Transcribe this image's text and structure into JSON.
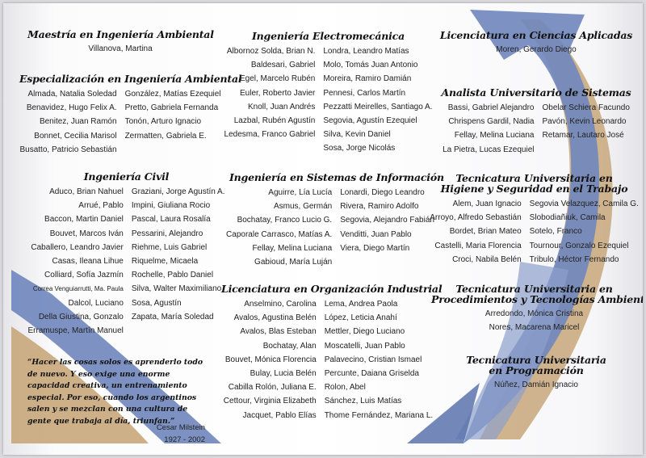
{
  "colors": {
    "blue": "#6f86bd",
    "blue_dark": "#4f669f",
    "tan": "#c8a77a",
    "background": "#f7f7f9"
  },
  "sections": {
    "maestria": {
      "title": [
        "Maestría en Ingeniería Ambiental"
      ],
      "single": [
        "Villanova, Martina"
      ]
    },
    "especializacion": {
      "title": [
        "Especialización en Ingeniería Ambiental"
      ],
      "left": [
        "Almada, Natalia Soledad",
        "Benavidez, Hugo Felix A.",
        "Benitez, Juan Ramón",
        "Bonnet, Cecilia Marisol",
        "Busatto, Patricio Sebastián"
      ],
      "right": [
        "González, Matías Ezequiel",
        "Pretto, Gabriela Fernanda",
        "Tonón, Arturo Ignacio",
        "Zermatten, Gabriela E."
      ]
    },
    "civil": {
      "title": [
        "Ingeniería Civil"
      ],
      "left": [
        "Aduco, Brian Nahuel",
        "Arrué, Pablo",
        "Baccon, Martin Daniel",
        "Bouvet, Marcos Iván",
        "Caballero, Leandro Javier",
        "Casas, Ileana Lihue",
        "Colliard, Sofía Jazmín",
        "Correa Venguiarrutti, Ma. Paula",
        "Dalcol, Luciano",
        "Della Giustina, Gonzalo",
        "Erramuspe, Martín Manuel"
      ],
      "right": [
        "Graziani, Jorge Agustín A.",
        "Impini, Giuliana Rocio",
        "Pascal, Laura Rosalía",
        "Pessarini, Alejandro",
        "Riehme, Luis Gabriel",
        "Riquelme, Micaela",
        "Rochelle, Pablo Daniel",
        "Silva, Walter Maximiliano",
        "Sosa, Agustín",
        "Zapata, María Soledad"
      ]
    },
    "electromecanica": {
      "title": [
        "Ingeniería Electromecánica"
      ],
      "left": [
        "Albornoz Solda, Brian N.",
        "Baldesari, Gabriel",
        "Egel, Marcelo Rubén",
        "Euler, Roberto Javier",
        "Knoll, Juan Andrés",
        "Lazbal, Rubén Agustín",
        "Ledesma, Franco Gabriel"
      ],
      "right": [
        "Londra, Leandro Matías",
        "Molo, Tomás Juan Antonio",
        "Moreira, Ramiro Damián",
        "Pennesi, Carlos Martín",
        "Pezzatti Meirelles, Santiago A.",
        "Segovia, Agustín Ezequiel",
        "Silva, Kevin Daniel",
        "Sosa, Jorge Nicolás"
      ]
    },
    "sistemas": {
      "title": [
        "Ingeniería en Sistemas de Información"
      ],
      "left": [
        "Aguirre, Lía Lucía",
        "Asmus, Germán",
        "Bochatay, Franco Lucio G.",
        "Caporale Carrasco, Matías A.",
        "Fellay, Melina Luciana",
        "Gabioud, María Luján"
      ],
      "right": [
        "Lonardi, Diego Leandro",
        "Rivera, Ramiro Adolfo",
        "Segovia, Alejandro Fabián",
        "Venditti, Juan Pablo",
        "Viera, Diego Martín"
      ]
    },
    "organizacion": {
      "title": [
        "Licenciatura en Organización Industrial"
      ],
      "left": [
        "Anselmino, Carolina",
        "Avalos, Agustina Belén",
        "Avalos, Blas Esteban",
        "Bochatay, Alan",
        "Bouvet, Mónica Florencia",
        "Bulay, Lucia Belén",
        "Cabilla Rolón, Juliana E.",
        "Cettour, Virginia Elizabeth",
        "Jacquet, Pablo Elías"
      ],
      "right": [
        "Lema, Andrea Paola",
        "López, Leticia Anahí",
        "Mettler, Diego Luciano",
        "Moscatelli, Juan Pablo",
        "Palavecino, Cristian Ismael",
        "Percunte, Daiana Griselda",
        "Rolon, Abel",
        "Sánchez, Luis Matías",
        "Thome Fernández, Mariana L."
      ]
    },
    "ciencias": {
      "title": [
        "Licenciatura en Ciencias Aplicadas"
      ],
      "single": [
        "Moren, Gerardo Diego"
      ]
    },
    "analista": {
      "title": [
        "Analista Universitario  de Sistemas"
      ],
      "left": [
        "Bassi, Gabriel Alejandro",
        "Chrispens Gardil, Nadia",
        "Fellay, Melina Luciana",
        "La Pietra, Lucas Ezequiel"
      ],
      "right": [
        "Obelar Schiera Facundo",
        "Pavón, Kevin Leonardo",
        "Retamar, Lautaro José"
      ]
    },
    "higiene": {
      "title": [
        "Tecnicatura Universitaria en",
        "Higiene y Seguridad en el Trabajo"
      ],
      "left": [
        "Alem, Juan Ignacio",
        "Arroyo, Alfredo Sebastián",
        "Bordet, Brian Mateo",
        "Castelli, Maria Florencia",
        "Croci, Nabila Belén"
      ],
      "right": [
        "Segovia Velazquez, Camila G.",
        "Slobodiañiuk, Camila",
        "Sotelo, Franco",
        "Tournour, Gonzalo Ezequiel",
        "Tribulo, Héctor Fernando"
      ]
    },
    "procedimientos": {
      "title": [
        "Tecnicatura Universitaria en",
        "Procedimientos y Tecnologías Ambientales"
      ],
      "single": [
        "Arredondo, Mónica Cristina",
        "Nores, Macarena Maricel"
      ]
    },
    "programacion": {
      "title": [
        "Tecnicatura Universitaria",
        "en Programación"
      ],
      "single": [
        "Núñez, Damián Ignacio"
      ]
    }
  },
  "quote": {
    "text": "“Hacer las cosas solos es aprenderlo todo de nuevo. Y eso exige una enorme capacidad creativa, un entrenamiento especial. Por eso, cuando los argentinos salen y se mezclan con una cultura de gente que trabaja al día, triunfan.”",
    "author": "Cesar Milstein",
    "years": "1927 - 2002"
  }
}
